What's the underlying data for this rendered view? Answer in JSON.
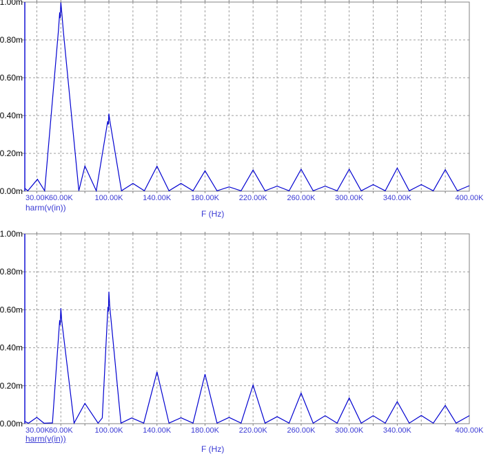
{
  "colors": {
    "background": "#ffffff",
    "curve": "#0000d0",
    "y_axis_line": "#0000d0",
    "x_tick_text": "#3939d4",
    "y_tick_text": "#000000",
    "legend_text": "#3939d4",
    "xlabel_text": "#3939d4",
    "grid": "#9c9c9c",
    "border": "#808080"
  },
  "chart_data": [
    {
      "type": "line",
      "plot_id": "top-spectrum",
      "legend": "harm(v(in))",
      "legend_underlined": false,
      "xlabel": "F (Hz)",
      "x_unit": "kHz",
      "y_unit": "mV",
      "xlim_khz": [
        30,
        400
      ],
      "ylim_mv": [
        0,
        1.0
      ],
      "x_grid_step_khz": 20,
      "y_grid_step_mv": 0.2,
      "grid_style": "dashed",
      "x_ticks": [
        {
          "khz": 30,
          "label": "30.00K",
          "anchor": "start"
        },
        {
          "khz": 60,
          "label": "60.00K",
          "anchor": "middle"
        },
        {
          "khz": 100,
          "label": "100.00K",
          "anchor": "middle"
        },
        {
          "khz": 140,
          "label": "140.00K",
          "anchor": "middle"
        },
        {
          "khz": 180,
          "label": "180.00K",
          "anchor": "middle"
        },
        {
          "khz": 220,
          "label": "220.00K",
          "anchor": "middle"
        },
        {
          "khz": 260,
          "label": "260.00K",
          "anchor": "middle"
        },
        {
          "khz": 300,
          "label": "300.00K",
          "anchor": "middle"
        },
        {
          "khz": 340,
          "label": "340.00K",
          "anchor": "middle"
        },
        {
          "khz": 400,
          "label": "400.00K",
          "anchor": "middle"
        }
      ],
      "y_ticks": [
        {
          "mv": 1.0,
          "label": "1.00m"
        },
        {
          "mv": 0.8,
          "label": "0.80m"
        },
        {
          "mv": 0.6,
          "label": "0.60m"
        },
        {
          "mv": 0.4,
          "label": "0.40m"
        },
        {
          "mv": 0.2,
          "label": "0.20m"
        },
        {
          "mv": 0.0,
          "label": "0.00m"
        }
      ],
      "series": [
        {
          "name": "harm(v(in))",
          "color": "#0000d0",
          "points_khz_mv": [
            [
              30,
              0.015
            ],
            [
              32.5,
              0.002
            ],
            [
              40.5,
              0.063
            ],
            [
              46.5,
              0.002
            ],
            [
              58,
              0.85
            ],
            [
              59,
              0.945
            ],
            [
              59.4,
              0.915
            ],
            [
              60,
              0.998
            ],
            [
              61,
              0.93
            ],
            [
              62,
              0.85
            ],
            [
              75,
              0.002
            ],
            [
              80,
              0.133
            ],
            [
              89.5,
              0.002
            ],
            [
              99,
              0.37
            ],
            [
              99.5,
              0.352
            ],
            [
              100,
              0.41
            ],
            [
              100.8,
              0.372
            ],
            [
              110.5,
              0.002
            ],
            [
              120,
              0.041
            ],
            [
              129.5,
              0.002
            ],
            [
              140,
              0.132
            ],
            [
              150,
              0.002
            ],
            [
              160,
              0.041
            ],
            [
              170,
              0.002
            ],
            [
              180,
              0.108
            ],
            [
              190,
              0.002
            ],
            [
              200,
              0.023
            ],
            [
              210,
              0.002
            ],
            [
              220,
              0.112
            ],
            [
              230,
              0.002
            ],
            [
              240,
              0.027
            ],
            [
              250,
              0.002
            ],
            [
              260,
              0.116
            ],
            [
              270,
              0.002
            ],
            [
              280,
              0.027
            ],
            [
              290,
              0.002
            ],
            [
              300,
              0.116
            ],
            [
              310,
              0.002
            ],
            [
              320,
              0.035
            ],
            [
              330,
              0.002
            ],
            [
              340,
              0.122
            ],
            [
              350,
              0.002
            ],
            [
              360,
              0.035
            ],
            [
              370,
              0.002
            ],
            [
              380,
              0.114
            ],
            [
              390,
              0.002
            ],
            [
              400,
              0.029
            ]
          ]
        }
      ]
    },
    {
      "type": "line",
      "plot_id": "bottom-spectrum",
      "legend": "harm(v(in))",
      "legend_underlined": true,
      "xlabel": "F (Hz)",
      "x_unit": "kHz",
      "y_unit": "mV",
      "xlim_khz": [
        30,
        400
      ],
      "ylim_mv": [
        0,
        1.0
      ],
      "x_grid_step_khz": 20,
      "y_grid_step_mv": 0.2,
      "grid_style": "dashed",
      "x_ticks": [
        {
          "khz": 30,
          "label": "30.00K",
          "anchor": "start"
        },
        {
          "khz": 60,
          "label": "60.00K",
          "anchor": "middle"
        },
        {
          "khz": 100,
          "label": "100.00K",
          "anchor": "middle"
        },
        {
          "khz": 140,
          "label": "140.00K",
          "anchor": "middle"
        },
        {
          "khz": 180,
          "label": "180.00K",
          "anchor": "middle"
        },
        {
          "khz": 220,
          "label": "220.00K",
          "anchor": "middle"
        },
        {
          "khz": 260,
          "label": "260.00K",
          "anchor": "middle"
        },
        {
          "khz": 300,
          "label": "300.00K",
          "anchor": "middle"
        },
        {
          "khz": 340,
          "label": "340.00K",
          "anchor": "middle"
        },
        {
          "khz": 400,
          "label": "400.00K",
          "anchor": "middle"
        }
      ],
      "y_ticks": [
        {
          "mv": 1.0,
          "label": "1.00m"
        },
        {
          "mv": 0.8,
          "label": "0.80m"
        },
        {
          "mv": 0.6,
          "label": "0.60m"
        },
        {
          "mv": 0.4,
          "label": "0.40m"
        },
        {
          "mv": 0.2,
          "label": "0.20m"
        },
        {
          "mv": 0.0,
          "label": "0.00m"
        }
      ],
      "series": [
        {
          "name": "harm(v(in))",
          "color": "#0000d0",
          "points_khz_mv": [
            [
              30,
              0.012
            ],
            [
              33,
              0.002
            ],
            [
              40,
              0.033
            ],
            [
              46,
              0.002
            ],
            [
              53,
              0.004
            ],
            [
              59,
              0.545
            ],
            [
              59.4,
              0.52
            ],
            [
              60,
              0.608
            ],
            [
              60.7,
              0.545
            ],
            [
              71,
              0.003
            ],
            [
              80,
              0.107
            ],
            [
              91,
              0.003
            ],
            [
              94.5,
              0.03
            ],
            [
              99.2,
              0.615
            ],
            [
              99.6,
              0.59
            ],
            [
              100,
              0.695
            ],
            [
              100.7,
              0.62
            ],
            [
              110,
              0.003
            ],
            [
              119,
              0.03
            ],
            [
              129,
              0.003
            ],
            [
              140,
              0.273
            ],
            [
              150,
              0.003
            ],
            [
              160,
              0.031
            ],
            [
              170,
              0.003
            ],
            [
              180,
              0.261
            ],
            [
              190,
              0.003
            ],
            [
              200,
              0.033
            ],
            [
              210,
              0.003
            ],
            [
              220,
              0.203
            ],
            [
              230,
              0.003
            ],
            [
              240,
              0.037
            ],
            [
              250,
              0.003
            ],
            [
              260,
              0.161
            ],
            [
              270,
              0.003
            ],
            [
              280,
              0.042
            ],
            [
              290,
              0.003
            ],
            [
              300,
              0.135
            ],
            [
              310,
              0.003
            ],
            [
              320,
              0.042
            ],
            [
              330,
              0.003
            ],
            [
              340,
              0.116
            ],
            [
              350,
              0.003
            ],
            [
              360,
              0.043
            ],
            [
              370,
              0.003
            ],
            [
              380,
              0.096
            ],
            [
              389,
              0.003
            ],
            [
              400,
              0.042
            ]
          ]
        }
      ]
    }
  ]
}
